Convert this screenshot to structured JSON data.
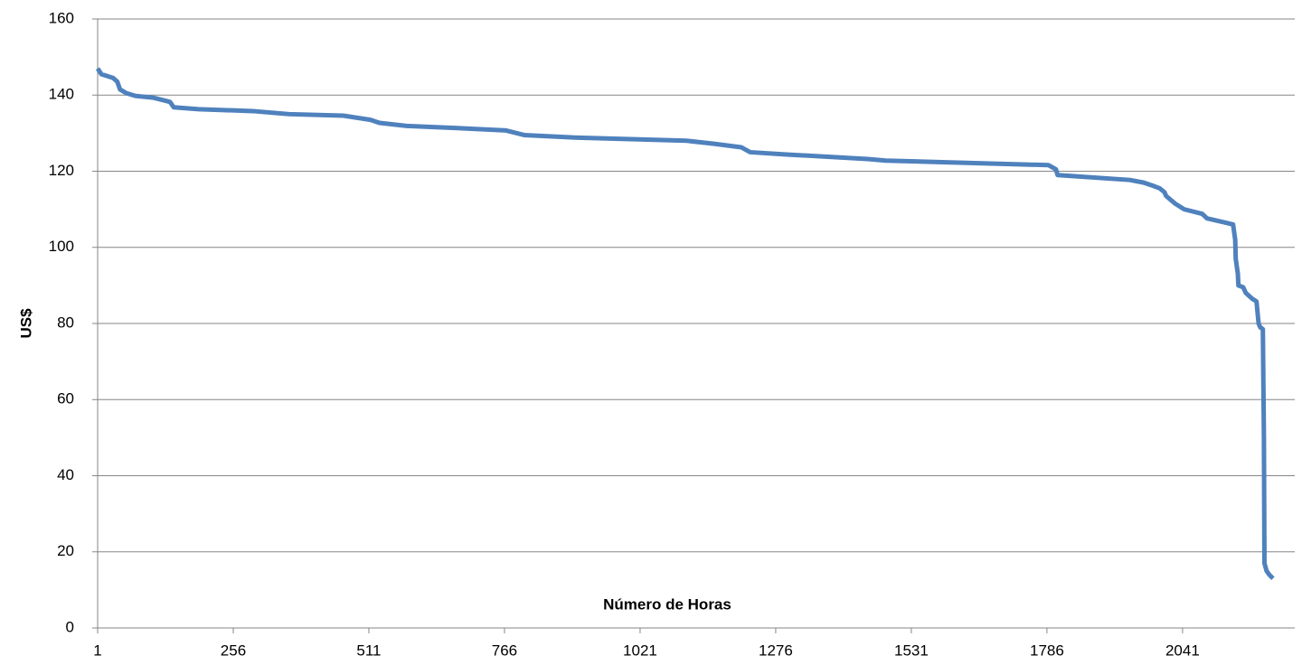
{
  "chart_data": {
    "type": "line",
    "y_label": "US$",
    "x_label": "Número de Horas",
    "xlim": [
      1,
      2252
    ],
    "xticks": [
      1,
      256,
      511,
      766,
      1021,
      1276,
      1531,
      1786,
      2041
    ],
    "ylim": [
      0,
      160
    ],
    "yticks": [
      0,
      20,
      40,
      60,
      80,
      100,
      120,
      140,
      160
    ],
    "grid": true,
    "series": [
      {
        "color": "#4f81bd",
        "x": [
          1,
          8,
          30,
          38,
          43,
          55,
          72,
          106,
          123,
          137,
          144,
          191,
          293,
          361,
          463,
          514,
          531,
          582,
          667,
          769,
          803,
          905,
          1109,
          1160,
          1211,
          1228,
          1296,
          1449,
          1483,
          1789,
          1803,
          1806,
          1942,
          1968,
          1985,
          1998,
          2007,
          2010,
          2027,
          2044,
          2078,
          2087,
          2121,
          2136,
          2140,
          2141,
          2145,
          2146,
          2155,
          2160,
          2172,
          2180,
          2184,
          2187,
          2192,
          2194,
          2195,
          2199,
          2204,
          2211
        ],
        "values": [
          147,
          145.5,
          144.5,
          143.5,
          141.5,
          140.5,
          139.8,
          139.3,
          138.7,
          138.2,
          136.8,
          136.3,
          135.8,
          135,
          134.6,
          133.5,
          132.7,
          131.9,
          131.4,
          130.7,
          129.5,
          128.8,
          128,
          127.2,
          126.3,
          125,
          124.4,
          123.2,
          122.8,
          121.6,
          120.5,
          119,
          117.7,
          117,
          116.2,
          115.5,
          114.5,
          113.5,
          111.5,
          110,
          108.8,
          107.6,
          106.5,
          106,
          102,
          97,
          93,
          90,
          89.5,
          88,
          86.5,
          85.8,
          80,
          79,
          78.5,
          50,
          17,
          15,
          14,
          13
        ]
      }
    ]
  }
}
